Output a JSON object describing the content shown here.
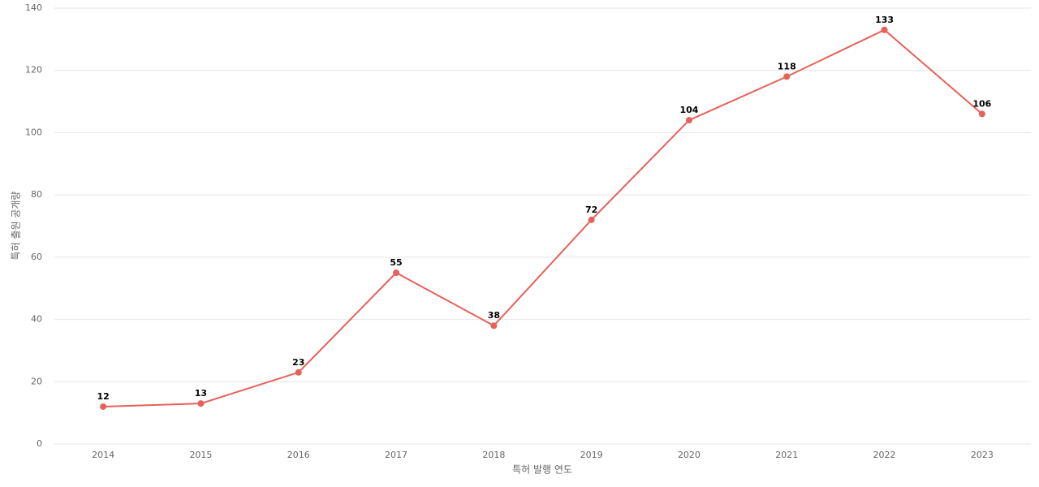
{
  "chart_data": {
    "type": "line",
    "x_label": "특허 발행 연도",
    "y_label": "특허 출원 공개량",
    "categories": [
      "2014",
      "2015",
      "2016",
      "2017",
      "2018",
      "2019",
      "2020",
      "2021",
      "2022",
      "2023"
    ],
    "values": [
      12,
      13,
      23,
      55,
      38,
      72,
      104,
      118,
      133,
      106
    ],
    "color": "#e8605a",
    "ylim": [
      0,
      140
    ],
    "yticks": [
      0,
      20,
      40,
      60,
      80,
      100,
      120,
      140
    ],
    "grid": true
  }
}
